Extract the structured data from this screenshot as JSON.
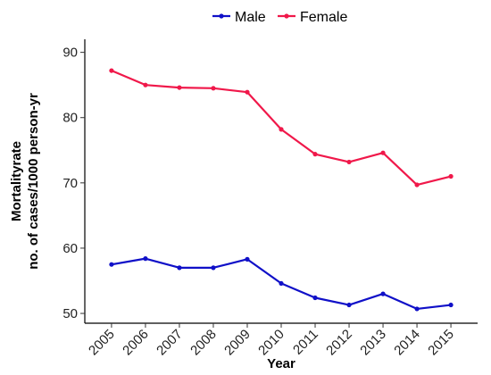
{
  "chart_data": {
    "type": "line",
    "x": [
      2005,
      2006,
      2007,
      2008,
      2009,
      2010,
      2011,
      2012,
      2013,
      2014,
      2015
    ],
    "series": [
      {
        "name": "Male",
        "color": "#1010c8",
        "values": [
          57.5,
          58.4,
          57.0,
          57.0,
          58.3,
          54.6,
          52.4,
          51.3,
          53.0,
          50.7,
          51.3
        ]
      },
      {
        "name": "Female",
        "color": "#f0184a",
        "values": [
          87.2,
          85.0,
          84.6,
          84.5,
          83.9,
          78.2,
          74.4,
          73.2,
          74.6,
          69.7,
          71.0
        ]
      }
    ],
    "xlabel": "Year",
    "ylabel_line1": "Mortalityrate",
    "ylabel_line2": "no. of cases/1000 person-yr",
    "ylim": [
      48.5,
      92
    ],
    "yticks": [
      50,
      60,
      70,
      80,
      90
    ],
    "legend_position": "top",
    "grid": false
  }
}
